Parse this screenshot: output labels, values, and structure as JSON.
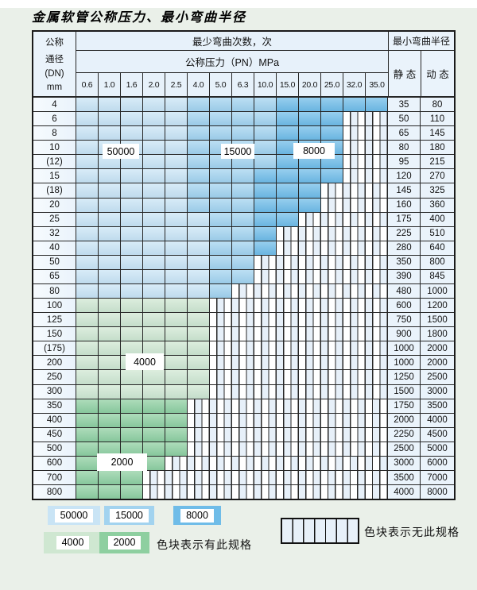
{
  "title": "金属软管公称压力、最小弯曲半径",
  "colors": {
    "page_bg": "#eaf0e9",
    "grid": "#262626",
    "header": "#e7f1fa",
    "pale": "#eaf3fb",
    "z50000": "#c9e4f5",
    "z15000": "#a2d3ef",
    "z8000": "#6fbce8",
    "z4000": "#cfe7d1",
    "z2000": "#8ecfa0",
    "hatch_tint": "#e7f0f9"
  },
  "table": {
    "header": {
      "dn_lines": [
        "公称",
        "通径",
        "(DN)",
        "mm"
      ],
      "cycles_label": "最少弯曲次数，次",
      "pressure_label": "公称压力（PN）MPa",
      "radius_label": "最小弯曲半径",
      "static_label": "静 态",
      "dynamic_label": "动 态",
      "pressure_columns": [
        "0.6",
        "1.0",
        "1.6",
        "2.0",
        "2.5",
        "4.0",
        "5.0",
        "6.3",
        "10.0",
        "15.0",
        "20.0",
        "25.0",
        "32.0",
        "35.0"
      ]
    },
    "zone_legend_note": "cells list [bend-cycle-class, column-span]; 'none' = no such specification (hatched)",
    "rows": [
      {
        "dn": "4",
        "cells": [
          [
            "50000",
            5
          ],
          [
            "15000",
            4
          ],
          [
            "8000",
            5
          ]
        ],
        "static": "35",
        "dynamic": "80"
      },
      {
        "dn": "6",
        "cells": [
          [
            "50000",
            5
          ],
          [
            "15000",
            4
          ],
          [
            "8000",
            3
          ],
          [
            "none",
            2
          ]
        ],
        "static": "50",
        "dynamic": "110"
      },
      {
        "dn": "8",
        "cells": [
          [
            "50000",
            5
          ],
          [
            "15000",
            4
          ],
          [
            "8000",
            3
          ],
          [
            "none",
            2
          ]
        ],
        "static": "65",
        "dynamic": "145"
      },
      {
        "dn": "10",
        "cells": [
          [
            "50000",
            5
          ],
          [
            "15000",
            4
          ],
          [
            "8000",
            3
          ],
          [
            "none",
            2
          ]
        ],
        "static": "80",
        "dynamic": "180"
      },
      {
        "dn": "(12)",
        "cells": [
          [
            "50000",
            5
          ],
          [
            "15000",
            4
          ],
          [
            "8000",
            3
          ],
          [
            "none",
            2
          ]
        ],
        "static": "95",
        "dynamic": "215"
      },
      {
        "dn": "15",
        "cells": [
          [
            "50000",
            5
          ],
          [
            "15000",
            3
          ],
          [
            "8000",
            4
          ],
          [
            "none",
            2
          ]
        ],
        "static": "120",
        "dynamic": "270"
      },
      {
        "dn": "(18)",
        "cells": [
          [
            "50000",
            5
          ],
          [
            "15000",
            3
          ],
          [
            "8000",
            3
          ],
          [
            "none",
            3
          ]
        ],
        "static": "145",
        "dynamic": "325"
      },
      {
        "dn": "20",
        "cells": [
          [
            "50000",
            5
          ],
          [
            "15000",
            3
          ],
          [
            "8000",
            3
          ],
          [
            "none",
            3
          ]
        ],
        "static": "160",
        "dynamic": "360"
      },
      {
        "dn": "25",
        "cells": [
          [
            "50000",
            6
          ],
          [
            "15000",
            2
          ],
          [
            "8000",
            2
          ],
          [
            "none",
            4
          ]
        ],
        "static": "175",
        "dynamic": "400"
      },
      {
        "dn": "32",
        "cells": [
          [
            "50000",
            6
          ],
          [
            "15000",
            2
          ],
          [
            "8000",
            1
          ],
          [
            "none",
            5
          ]
        ],
        "static": "225",
        "dynamic": "510"
      },
      {
        "dn": "40",
        "cells": [
          [
            "50000",
            6
          ],
          [
            "15000",
            2
          ],
          [
            "8000",
            1
          ],
          [
            "none",
            5
          ]
        ],
        "static": "280",
        "dynamic": "640"
      },
      {
        "dn": "50",
        "cells": [
          [
            "50000",
            6
          ],
          [
            "15000",
            2
          ],
          [
            "none",
            6
          ]
        ],
        "static": "350",
        "dynamic": "800"
      },
      {
        "dn": "65",
        "cells": [
          [
            "50000",
            6
          ],
          [
            "15000",
            2
          ],
          [
            "none",
            6
          ]
        ],
        "static": "390",
        "dynamic": "845"
      },
      {
        "dn": "80",
        "cells": [
          [
            "50000",
            6
          ],
          [
            "15000",
            1
          ],
          [
            "none",
            7
          ]
        ],
        "static": "480",
        "dynamic": "1000"
      },
      {
        "dn": "100",
        "cells": [
          [
            "4000",
            6
          ],
          [
            "none",
            8
          ]
        ],
        "static": "600",
        "dynamic": "1200"
      },
      {
        "dn": "125",
        "cells": [
          [
            "4000",
            6
          ],
          [
            "none",
            8
          ]
        ],
        "static": "750",
        "dynamic": "1500"
      },
      {
        "dn": "150",
        "cells": [
          [
            "4000",
            6
          ],
          [
            "none",
            8
          ]
        ],
        "static": "900",
        "dynamic": "1800"
      },
      {
        "dn": "(175)",
        "cells": [
          [
            "4000",
            6
          ],
          [
            "none",
            8
          ]
        ],
        "static": "1000",
        "dynamic": "2000"
      },
      {
        "dn": "200",
        "cells": [
          [
            "4000",
            6
          ],
          [
            "none",
            8
          ]
        ],
        "static": "1000",
        "dynamic": "2000"
      },
      {
        "dn": "250",
        "cells": [
          [
            "4000",
            6
          ],
          [
            "none",
            8
          ]
        ],
        "static": "1250",
        "dynamic": "2500"
      },
      {
        "dn": "300",
        "cells": [
          [
            "4000",
            6
          ],
          [
            "none",
            8
          ]
        ],
        "static": "1500",
        "dynamic": "3000"
      },
      {
        "dn": "350",
        "cells": [
          [
            "2000",
            5
          ],
          [
            "none",
            9
          ]
        ],
        "static": "1750",
        "dynamic": "3500"
      },
      {
        "dn": "400",
        "cells": [
          [
            "2000",
            5
          ],
          [
            "none",
            9
          ]
        ],
        "static": "2000",
        "dynamic": "4000"
      },
      {
        "dn": "450",
        "cells": [
          [
            "2000",
            5
          ],
          [
            "none",
            9
          ]
        ],
        "static": "2250",
        "dynamic": "4500"
      },
      {
        "dn": "500",
        "cells": [
          [
            "2000",
            5
          ],
          [
            "none",
            9
          ]
        ],
        "static": "2500",
        "dynamic": "5000"
      },
      {
        "dn": "600",
        "cells": [
          [
            "2000",
            4
          ],
          [
            "none",
            10
          ]
        ],
        "static": "3000",
        "dynamic": "6000"
      },
      {
        "dn": "700",
        "cells": [
          [
            "2000",
            3
          ],
          [
            "none",
            11
          ]
        ],
        "static": "3500",
        "dynamic": "7000"
      },
      {
        "dn": "800",
        "cells": [
          [
            "2000",
            3
          ],
          [
            "none",
            11
          ]
        ],
        "static": "4000",
        "dynamic": "8000"
      }
    ],
    "overlays": {
      "l50000": "50000",
      "l15000": "15000",
      "l8000": "8000",
      "l4000": "4000",
      "l2000": "2000"
    }
  },
  "legend": {
    "items": [
      {
        "value": "50000",
        "zone": "z50000"
      },
      {
        "value": "15000",
        "zone": "z15000"
      },
      {
        "value": "8000",
        "zone": "z8000"
      },
      {
        "value": "4000",
        "zone": "z4000"
      },
      {
        "value": "2000",
        "zone": "z2000"
      }
    ],
    "has_spec_text": "色块表示有此规格",
    "no_spec_text": "色块表示无此规格"
  }
}
